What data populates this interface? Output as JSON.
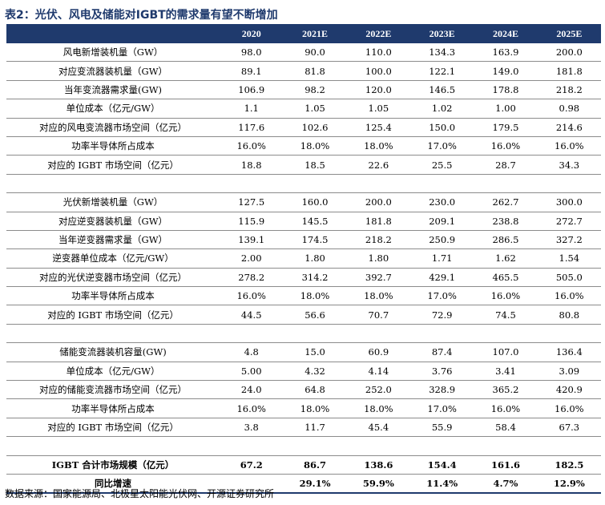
{
  "title": "表2：光伏、风电及储能对IGBT的需求量有望不断增加",
  "header": [
    "",
    "2020",
    "2021E",
    "2022E",
    "2023E",
    "2024E",
    "2025E"
  ],
  "sections": [
    [
      {
        "label": "风电新增装机量（GW）",
        "values": [
          "98.0",
          "90.0",
          "110.0",
          "134.3",
          "163.9",
          "200.0"
        ]
      },
      {
        "label": "对应变流器装机量（GW）",
        "values": [
          "89.1",
          "81.8",
          "100.0",
          "122.1",
          "149.0",
          "181.8"
        ]
      },
      {
        "label": "当年变流器需求量(GW)",
        "values": [
          "106.9",
          "98.2",
          "120.0",
          "146.5",
          "178.8",
          "218.2"
        ]
      },
      {
        "label": "单位成本（亿元/GW）",
        "values": [
          "1.1",
          "1.05",
          "1.05",
          "1.02",
          "1.00",
          "0.98"
        ]
      },
      {
        "label": "对应的风电变流器市场空间（亿元）",
        "values": [
          "117.6",
          "102.6",
          "125.4",
          "150.0",
          "179.5",
          "214.6"
        ]
      },
      {
        "label": "功率半导体所占成本",
        "values": [
          "16.0%",
          "18.0%",
          "18.0%",
          "17.0%",
          "16.0%",
          "16.0%"
        ]
      },
      {
        "label": "对应的 IGBT 市场空间（亿元）",
        "values": [
          "18.8",
          "18.5",
          "22.6",
          "25.5",
          "28.7",
          "34.3"
        ]
      }
    ],
    [
      {
        "label": "光伏新增装机量（GW）",
        "values": [
          "127.5",
          "160.0",
          "200.0",
          "230.0",
          "262.7",
          "300.0"
        ]
      },
      {
        "label": "对应逆变器装机量（GW）",
        "values": [
          "115.9",
          "145.5",
          "181.8",
          "209.1",
          "238.8",
          "272.7"
        ]
      },
      {
        "label": "当年逆变器需求量（GW）",
        "values": [
          "139.1",
          "174.5",
          "218.2",
          "250.9",
          "286.5",
          "327.2"
        ]
      },
      {
        "label": "逆变器单位成本（亿元/GW）",
        "values": [
          "2.00",
          "1.80",
          "1.80",
          "1.71",
          "1.62",
          "1.54"
        ]
      },
      {
        "label": "对应的光伏逆变器市场空间（亿元）",
        "values": [
          "278.2",
          "314.2",
          "392.7",
          "429.1",
          "465.5",
          "505.0"
        ]
      },
      {
        "label": "功率半导体所占成本",
        "values": [
          "16.0%",
          "18.0%",
          "18.0%",
          "17.0%",
          "16.0%",
          "16.0%"
        ]
      },
      {
        "label": "对应的 IGBT 市场空间（亿元）",
        "values": [
          "44.5",
          "56.6",
          "70.7",
          "72.9",
          "74.5",
          "80.8"
        ]
      }
    ],
    [
      {
        "label": "储能变流器装机容量(GW)",
        "values": [
          "4.8",
          "15.0",
          "60.9",
          "87.4",
          "107.0",
          "136.4"
        ]
      },
      {
        "label": "单位成本（亿元/GW）",
        "values": [
          "5.00",
          "4.32",
          "4.14",
          "3.76",
          "3.41",
          "3.09"
        ]
      },
      {
        "label": "对应的储能变流器市场空间（亿元）",
        "values": [
          "24.0",
          "64.8",
          "252.0",
          "328.9",
          "365.2",
          "420.9"
        ]
      },
      {
        "label": "功率半导体所占成本",
        "values": [
          "16.0%",
          "18.0%",
          "18.0%",
          "17.0%",
          "16.0%",
          "16.0%"
        ]
      },
      {
        "label": "对应的 IGBT 市场空间（亿元）",
        "values": [
          "3.8",
          "11.7",
          "45.4",
          "55.9",
          "58.4",
          "67.3"
        ]
      }
    ]
  ],
  "totals": [
    {
      "label": "IGBT 合计市场规模（亿元）",
      "values": [
        "67.2",
        "86.7",
        "138.6",
        "154.4",
        "161.6",
        "182.5"
      ]
    },
    {
      "label": "同比增速",
      "values": [
        "",
        "29.1%",
        "59.9%",
        "11.4%",
        "4.7%",
        "12.9%"
      ]
    }
  ],
  "source": "数据来源：国家能源局、北极星太阳能光伏网、开源证券研究所"
}
